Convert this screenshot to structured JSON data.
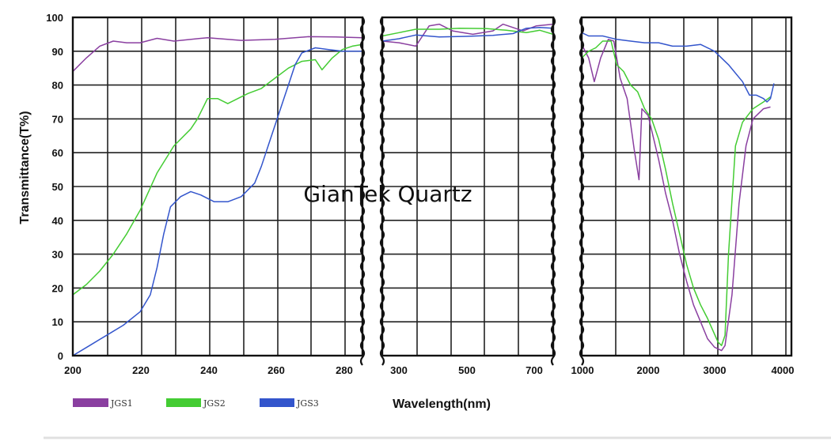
{
  "chart_data": {
    "type": "line",
    "title": "",
    "watermark": "GianTek Quartz",
    "ylabel": "Transmittance(T%)",
    "xlabel": "Wavelength(nm)",
    "ylim": [
      0,
      100
    ],
    "yticks": [
      "0",
      "10",
      "20",
      "30",
      "40",
      "50",
      "60",
      "70",
      "80",
      "90",
      "100"
    ],
    "grid": true,
    "legend_placement": "bottom-left",
    "panels": [
      {
        "xlim": [
          200,
          286
        ],
        "xticks": [
          "200",
          "220",
          "240",
          "260",
          "280"
        ],
        "series": [
          {
            "name": "JGS1",
            "color": "#8a3fa0",
            "points": [
              [
                200,
                84
              ],
              [
                204,
                88
              ],
              [
                208,
                91.5
              ],
              [
                212,
                93
              ],
              [
                216,
                92.5
              ],
              [
                220,
                92.5
              ],
              [
                225,
                93.8
              ],
              [
                230,
                93
              ],
              [
                240,
                94
              ],
              [
                250,
                93.2
              ],
              [
                260,
                93.5
              ],
              [
                270,
                94.3
              ],
              [
                278,
                94.2
              ],
              [
                286,
                94
              ]
            ]
          },
          {
            "name": "JGS2",
            "color": "#44cc33",
            "points": [
              [
                200,
                18
              ],
              [
                204,
                21
              ],
              [
                208,
                25
              ],
              [
                212,
                30
              ],
              [
                216,
                36
              ],
              [
                220,
                43
              ],
              [
                225,
                54
              ],
              [
                230,
                62
              ],
              [
                235,
                67
              ],
              [
                237,
                70
              ],
              [
                239,
                74
              ],
              [
                240,
                76
              ],
              [
                243,
                76
              ],
              [
                246,
                74.5
              ],
              [
                249,
                76
              ],
              [
                252,
                77.5
              ],
              [
                256,
                79
              ],
              [
                260,
                82
              ],
              [
                264,
                85
              ],
              [
                268,
                87
              ],
              [
                272,
                87.5
              ],
              [
                274,
                84.5
              ],
              [
                277,
                88
              ],
              [
                280,
                90.5
              ],
              [
                283,
                91.5
              ],
              [
                286,
                92
              ]
            ]
          },
          {
            "name": "JGS3",
            "color": "#3355cc",
            "points": [
              [
                200,
                0
              ],
              [
                205,
                3
              ],
              [
                210,
                6
              ],
              [
                215,
                9
              ],
              [
                220,
                13
              ],
              [
                223,
                18
              ],
              [
                225,
                26
              ],
              [
                227,
                36
              ],
              [
                229,
                44
              ],
              [
                232,
                47
              ],
              [
                235,
                48.5
              ],
              [
                238,
                47.5
              ],
              [
                242,
                45.5
              ],
              [
                246,
                45.5
              ],
              [
                250,
                47
              ],
              [
                254,
                51
              ],
              [
                256,
                56
              ],
              [
                258,
                62
              ],
              [
                261,
                71
              ],
              [
                264,
                80
              ],
              [
                266,
                86
              ],
              [
                268,
                89.5
              ],
              [
                272,
                91
              ],
              [
                276,
                90.5
              ],
              [
                280,
                90
              ],
              [
                286,
                90
              ]
            ]
          }
        ]
      },
      {
        "xlim": [
          250,
          760
        ],
        "xticks": [
          "300",
          "500",
          "700"
        ],
        "series": [
          {
            "name": "JGS1",
            "color": "#8a3fa0",
            "points": [
              [
                250,
                93
              ],
              [
                300,
                92.5
              ],
              [
                350,
                91.5
              ],
              [
                390,
                97.5
              ],
              [
                420,
                98
              ],
              [
                460,
                96
              ],
              [
                520,
                95
              ],
              [
                580,
                96
              ],
              [
                610,
                98
              ],
              [
                640,
                97
              ],
              [
                670,
                96
              ],
              [
                710,
                97.5
              ],
              [
                760,
                98
              ]
            ]
          },
          {
            "name": "JGS2",
            "color": "#44cc33",
            "points": [
              [
                250,
                94.5
              ],
              [
                300,
                95.5
              ],
              [
                350,
                96.5
              ],
              [
                420,
                96.5
              ],
              [
                480,
                96.8
              ],
              [
                560,
                96.7
              ],
              [
                620,
                96.2
              ],
              [
                680,
                95.5
              ],
              [
                720,
                96.2
              ],
              [
                760,
                95
              ]
            ]
          },
          {
            "name": "JGS3",
            "color": "#3355cc",
            "points": [
              [
                250,
                93
              ],
              [
                300,
                93.7
              ],
              [
                350,
                94.8
              ],
              [
                420,
                94.2
              ],
              [
                500,
                94.4
              ],
              [
                580,
                94.7
              ],
              [
                640,
                95.2
              ],
              [
                680,
                96.8
              ],
              [
                720,
                97
              ],
              [
                760,
                96.8
              ]
            ]
          }
        ]
      },
      {
        "xlim": [
          1000,
          4000
        ],
        "xticks": [
          "1000",
          "2000",
          "3000",
          "4000"
        ],
        "series": [
          {
            "name": "JGS1",
            "color": "#8a3fa0",
            "points": [
              [
                1000,
                92
              ],
              [
                1100,
                88
              ],
              [
                1180,
                81
              ],
              [
                1270,
                88
              ],
              [
                1380,
                93.5
              ],
              [
                1460,
                93
              ],
              [
                1550,
                82
              ],
              [
                1650,
                76
              ],
              [
                1750,
                61
              ],
              [
                1820,
                52
              ],
              [
                1860,
                73
              ],
              [
                1950,
                71
              ],
              [
                2100,
                58
              ],
              [
                2200,
                48
              ],
              [
                2300,
                40
              ],
              [
                2400,
                30
              ],
              [
                2500,
                22
              ],
              [
                2600,
                15
              ],
              [
                2700,
                10
              ],
              [
                2800,
                5
              ],
              [
                2900,
                2.5
              ],
              [
                3000,
                1.5
              ],
              [
                3050,
                3
              ],
              [
                3150,
                18
              ],
              [
                3250,
                45
              ],
              [
                3350,
                62
              ],
              [
                3450,
                70
              ],
              [
                3600,
                73
              ],
              [
                3700,
                73.5
              ]
            ]
          },
          {
            "name": "JGS2",
            "color": "#44cc33",
            "points": [
              [
                1000,
                88
              ],
              [
                1100,
                90
              ],
              [
                1200,
                91
              ],
              [
                1300,
                93
              ],
              [
                1420,
                93
              ],
              [
                1500,
                86
              ],
              [
                1600,
                84
              ],
              [
                1700,
                80
              ],
              [
                1800,
                78
              ],
              [
                1900,
                73
              ],
              [
                2000,
                70
              ],
              [
                2100,
                64
              ],
              [
                2200,
                55
              ],
              [
                2300,
                45
              ],
              [
                2400,
                36
              ],
              [
                2500,
                27
              ],
              [
                2600,
                20
              ],
              [
                2700,
                15
              ],
              [
                2800,
                11
              ],
              [
                2950,
                4
              ],
              [
                3000,
                3
              ],
              [
                3050,
                6
              ],
              [
                3100,
                30
              ],
              [
                3200,
                62
              ],
              [
                3300,
                69
              ],
              [
                3450,
                73
              ],
              [
                3600,
                75
              ],
              [
                3700,
                76.5
              ]
            ]
          },
          {
            "name": "JGS3",
            "color": "#3355cc",
            "points": [
              [
                1000,
                95.5
              ],
              [
                1100,
                94.5
              ],
              [
                1300,
                94.5
              ],
              [
                1500,
                93.5
              ],
              [
                1700,
                93
              ],
              [
                1900,
                92.5
              ],
              [
                2100,
                92.5
              ],
              [
                2300,
                91.5
              ],
              [
                2500,
                91.5
              ],
              [
                2700,
                92
              ],
              [
                2900,
                90
              ],
              [
                3100,
                86
              ],
              [
                3300,
                81
              ],
              [
                3400,
                77
              ],
              [
                3500,
                77
              ],
              [
                3600,
                76
              ],
              [
                3650,
                75
              ],
              [
                3700,
                76
              ],
              [
                3750,
                80.5
              ]
            ]
          }
        ]
      }
    ],
    "legend": [
      {
        "name": "JGS1",
        "color": "#8a3fa0"
      },
      {
        "name": "JGS2",
        "color": "#44cc33"
      },
      {
        "name": "JGS3",
        "color": "#3355cc"
      }
    ]
  }
}
